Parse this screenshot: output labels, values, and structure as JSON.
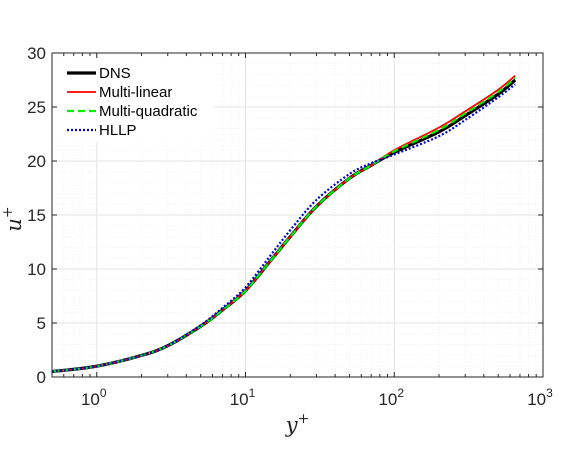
{
  "chart_data": {
    "type": "line",
    "title": "",
    "xlabel": "y+",
    "ylabel": "u+",
    "x_scale": "log",
    "xlim": [
      0.5,
      1000
    ],
    "ylim": [
      0,
      30
    ],
    "x_ticks": [
      {
        "value": 1,
        "base": "10",
        "exp": "0"
      },
      {
        "value": 10,
        "base": "10",
        "exp": "1"
      },
      {
        "value": 100,
        "base": "10",
        "exp": "2"
      },
      {
        "value": 1000,
        "base": "10",
        "exp": "3"
      }
    ],
    "y_ticks": [
      0,
      5,
      10,
      15,
      20,
      25,
      30
    ],
    "grid": true,
    "legend_position": "top-left",
    "x": [
      0.5,
      1,
      2,
      3,
      5,
      7,
      10,
      15,
      20,
      30,
      50,
      70,
      100,
      200,
      300,
      500,
      650
    ],
    "series": [
      {
        "name": "DNS",
        "color": "#000000",
        "style": "solid",
        "width": 3.2,
        "values": [
          0.5,
          1.0,
          2.0,
          2.9,
          4.7,
          6.2,
          8.0,
          10.9,
          13.0,
          15.8,
          18.4,
          19.6,
          20.8,
          22.7,
          24.2,
          26.2,
          27.5
        ]
      },
      {
        "name": "Multi-linear",
        "color": "#ff0000",
        "style": "solid",
        "width": 1.8,
        "values": [
          0.5,
          1.0,
          2.0,
          2.9,
          4.7,
          6.2,
          8.0,
          10.9,
          13.0,
          15.8,
          18.4,
          19.6,
          21.0,
          23.1,
          24.6,
          26.6,
          27.9
        ]
      },
      {
        "name": "Multi-quadratic",
        "color": "#00ee00",
        "style": "dashed",
        "width": 2.2,
        "values": [
          0.5,
          1.0,
          2.0,
          2.9,
          4.7,
          6.2,
          8.0,
          10.9,
          13.0,
          15.8,
          18.4,
          19.6,
          20.9,
          22.9,
          24.4,
          26.4,
          27.7
        ]
      },
      {
        "name": "HLLP",
        "color": "#0000cc",
        "style": "dotted",
        "width": 2.2,
        "values": [
          0.5,
          1.0,
          2.0,
          2.9,
          4.8,
          6.4,
          8.3,
          11.4,
          13.6,
          16.4,
          18.8,
          19.8,
          20.6,
          22.3,
          23.8,
          25.9,
          27.1
        ]
      }
    ]
  }
}
